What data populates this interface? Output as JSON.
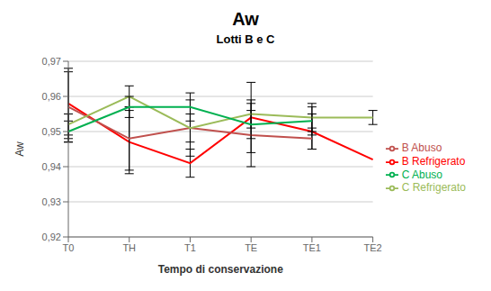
{
  "chart_data": {
    "type": "line",
    "title": "Aw",
    "subtitle": "Lotti B e C",
    "x_label": "Tempo di conservazione",
    "y_label": "Aw",
    "categories": [
      "T0",
      "TH",
      "T1",
      "TE",
      "TE1",
      "TE2"
    ],
    "series": [
      {
        "name": "B Refrigerato",
        "color": "#FF0000",
        "values": [
          0.958,
          0.947,
          0.941,
          0.954,
          0.95,
          0.942
        ],
        "errors": [
          0.01,
          0.009,
          0.004,
          0.01,
          0.005,
          0.0
        ]
      },
      {
        "name": "B Abuso",
        "color": "#C0504D",
        "values": [
          0.957,
          0.948,
          0.951,
          0.949,
          0.948,
          null
        ],
        "errors": [
          0.01,
          0.009,
          0.004,
          0.009,
          0.003,
          null
        ]
      },
      {
        "name": "C Refrigerato",
        "color": "#9BBB59",
        "values": [
          0.952,
          0.96,
          0.951,
          0.955,
          0.954,
          0.954
        ],
        "errors": [
          0.003,
          0.003,
          0.008,
          0.004,
          0.004,
          0.002
        ]
      },
      {
        "name": "C Abuso",
        "color": "#00B050",
        "values": [
          0.95,
          0.957,
          0.957,
          0.952,
          0.953,
          null
        ],
        "errors": [
          0.003,
          0.003,
          0.004,
          0.004,
          0.004,
          null
        ]
      }
    ],
    "ylim": [
      0.92,
      0.97
    ],
    "yticks": [
      {
        "value": 0.92,
        "label": "0,92"
      },
      {
        "value": 0.93,
        "label": "0,93"
      },
      {
        "value": 0.94,
        "label": "0,94"
      },
      {
        "value": 0.95,
        "label": "0,95"
      },
      {
        "value": 0.96,
        "label": "0,96"
      },
      {
        "value": 0.97,
        "label": "0,97"
      }
    ],
    "grid": true,
    "legend": "right"
  }
}
